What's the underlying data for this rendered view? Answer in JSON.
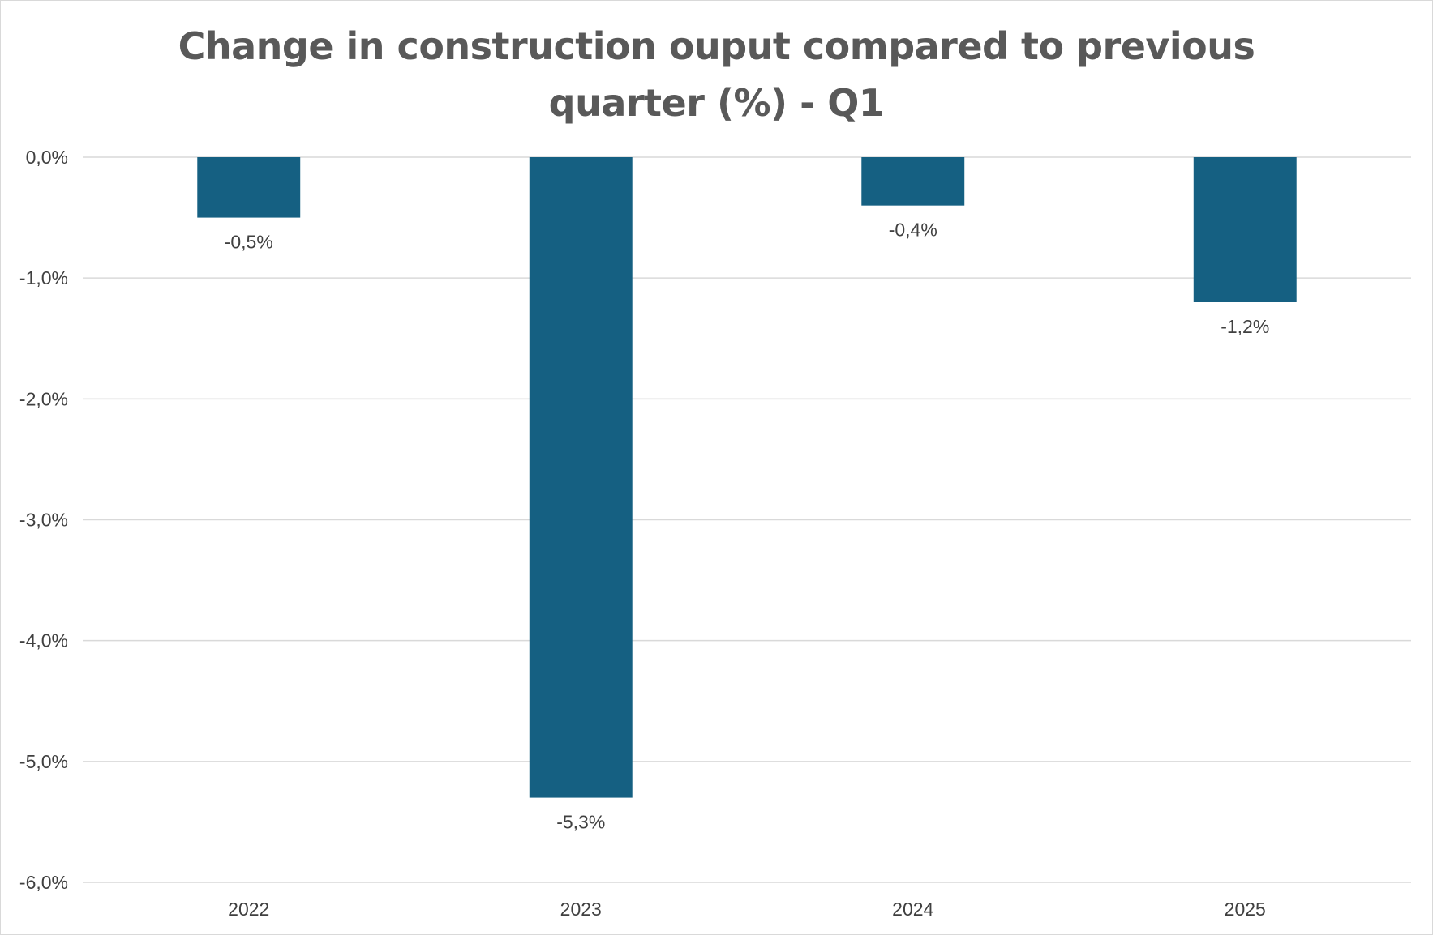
{
  "chart_data": {
    "type": "bar",
    "title": "Change in construction ouput compared to previous quarter (%) - Q1",
    "title_lines": [
      "Change in construction ouput compared to previous",
      "quarter (%) - Q1"
    ],
    "categories": [
      "2022",
      "2023",
      "2024",
      "2025"
    ],
    "values": [
      -0.5,
      -5.3,
      -0.4,
      -1.2
    ],
    "data_labels": [
      "-0,5%",
      "-5,3%",
      "-0,4%",
      "-1,2%"
    ],
    "ylim": [
      -6.0,
      0.0
    ],
    "yticks": [
      0.0,
      -1.0,
      -2.0,
      -3.0,
      -4.0,
      -5.0,
      -6.0
    ],
    "ytick_labels": [
      "0,0%",
      "-1,0%",
      "-2,0%",
      "-3,0%",
      "-4,0%",
      "-5,0%",
      "-6,0%"
    ],
    "xlabel": "",
    "ylabel": "",
    "grid": true,
    "legend": "none",
    "bar_color": "#156082",
    "grid_color": "#d9d9d9",
    "text_color": "#404040",
    "title_color": "#595959"
  }
}
